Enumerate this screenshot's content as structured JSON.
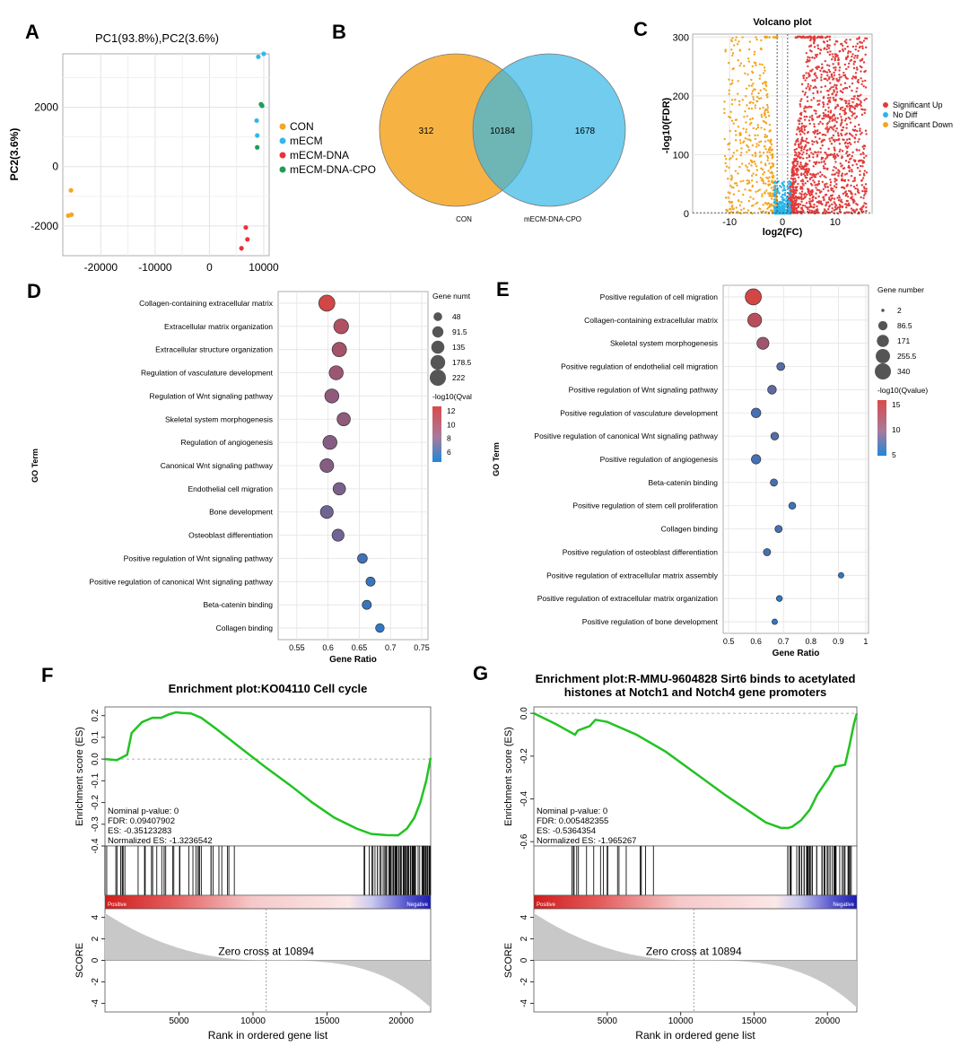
{
  "colors": {
    "orange": "#f5a623",
    "blue": "#35b7e6",
    "red": "#e8333a",
    "green": "#1e9c58",
    "grid": "#e3e3e3",
    "es_line": "#22c322",
    "gene_sig": "#e23b3b",
    "gene_nodiff": "#27b6ea",
    "gene_down": "#f3a51f"
  },
  "panels": {
    "A": "A",
    "B": "B",
    "C": "C",
    "D": "D",
    "E": "E",
    "F": "F",
    "G": "G"
  },
  "chart_data": [
    {
      "id": "A",
      "type": "scatter",
      "title": "PC1(93.8%),PC2(3.6%)",
      "xlabel": "",
      "ylabel": "PC2(3.6%)",
      "xlim": [
        -27000,
        11000
      ],
      "ylim": [
        -3000,
        3800
      ],
      "xticks": [
        {
          "v": -20000,
          "l": "-20000"
        },
        {
          "v": -10000,
          "l": "-10000"
        },
        {
          "v": 0,
          "l": "0"
        },
        {
          "v": 10000,
          "l": "10000"
        }
      ],
      "yticks": [
        {
          "v": 2000,
          "l": "2000"
        },
        {
          "v": 0,
          "l": "0"
        },
        {
          "v": -2000,
          "l": "-2000"
        }
      ],
      "legend": [
        "CON",
        "mECM",
        "mECM-DNA",
        "mECM-DNA-CPO"
      ],
      "series": [
        {
          "name": "CON",
          "color": "orange",
          "points": [
            [
              -25500,
              -800
            ],
            [
              -26000,
              -1650
            ],
            [
              -25400,
              -1620
            ]
          ]
        },
        {
          "name": "mECM",
          "color": "blue",
          "points": [
            [
              10000,
              3800
            ],
            [
              8700,
              1550
            ],
            [
              8800,
              1050
            ],
            [
              9000,
              3700
            ]
          ]
        },
        {
          "name": "mECM-DNA",
          "color": "red",
          "points": [
            [
              6700,
              -2050
            ],
            [
              7000,
              -2450
            ],
            [
              5900,
              -2750
            ]
          ]
        },
        {
          "name": "mECM-DNA-CPO",
          "color": "green",
          "points": [
            [
              9500,
              2100
            ],
            [
              9700,
              2050
            ],
            [
              8800,
              650
            ]
          ]
        }
      ]
    },
    {
      "id": "B",
      "type": "venn",
      "sets": [
        "CON",
        "mECM-DNA-CPO"
      ],
      "only_left": "312",
      "both": "10184",
      "only_right": "1678"
    },
    {
      "id": "C",
      "type": "scatter",
      "title": "Volcano plot",
      "xlabel": "log2(FC)",
      "ylabel": "-log10(FDR)",
      "xlim": [
        -17,
        17
      ],
      "ylim": [
        0,
        305
      ],
      "xticks": [
        {
          "v": -10,
          "l": "-10"
        },
        {
          "v": 0,
          "l": "0"
        },
        {
          "v": 10,
          "l": "10"
        }
      ],
      "yticks": [
        {
          "v": 0,
          "l": "0"
        },
        {
          "v": 100,
          "l": "100"
        },
        {
          "v": 200,
          "l": "200"
        },
        {
          "v": 300,
          "l": "300"
        }
      ],
      "legend": [
        "Significant Up",
        "No Diff",
        "Significant Down"
      ]
    },
    {
      "id": "D",
      "type": "scatter",
      "xlabel": "Gene Ratio",
      "ylabel": "GO Term",
      "xlim": [
        0.52,
        0.76
      ],
      "xticks": [
        "0.55",
        "0.6",
        "0.65",
        "0.7",
        "0.75"
      ],
      "size_title": "Gene numt",
      "size_legend": [
        "48",
        "91.5",
        "135",
        "178.5",
        "222"
      ],
      "color_title": "-log10(Qval",
      "color_legend": [
        "12",
        "10",
        "8",
        "6"
      ],
      "terms": [
        "Collagen-containing extracellular matrix",
        "Extracellular matrix organization",
        "Extracellular structure organization",
        "Regulation of vasculature development",
        "Regulation of Wnt signaling pathway",
        "Skeletal system morphogenesis",
        "Regulation of angiogenesis",
        "Canonical Wnt signaling pathway",
        "Endothelial cell migration",
        "Bone development",
        "Osteoblast differentiation",
        "Positive regulation of Wnt signaling pathway",
        "Positive regulation of canonical Wnt signaling pathway",
        "Beta-catenin binding",
        "Collagen binding"
      ],
      "ratio": [
        0.598,
        0.621,
        0.618,
        0.613,
        0.606,
        0.625,
        0.603,
        0.598,
        0.618,
        0.598,
        0.616,
        0.655,
        0.668,
        0.662,
        0.683
      ],
      "size": [
        222,
        180,
        170,
        160,
        160,
        140,
        160,
        150,
        120,
        130,
        110,
        65,
        55,
        55,
        48
      ],
      "q": [
        12.5,
        11,
        10.5,
        10,
        9.5,
        9.5,
        9,
        9,
        8.5,
        8,
        8,
        6,
        5.5,
        5.5,
        5
      ]
    },
    {
      "id": "E",
      "type": "scatter",
      "xlabel": "Gene Ratio",
      "ylabel": "GO Term",
      "xlim": [
        0.48,
        1.01
      ],
      "xticks": [
        "0.5",
        "0.6",
        "0.7",
        "0.8",
        "0.9",
        "1"
      ],
      "size_title": "Gene number",
      "size_legend": [
        "2",
        "86.5",
        "171",
        "255.5",
        "340"
      ],
      "color_title": "-log10(Qvalue)",
      "color_legend": [
        "15",
        "10",
        "5"
      ],
      "terms": [
        "Positive regulation of cell migration",
        "Collagen-containing extracellular matrix",
        "Skeletal system morphogenesis",
        "Positive regulation of endothelial cell migration",
        "Positive regulation of Wnt signaling pathway",
        "Positive regulation of vasculature development",
        "Positive regulation of canonical Wnt signaling pathway",
        "Positive regulation of angiogenesis",
        "Beta-catenin binding",
        "Positive regulation of stem cell proliferation",
        "Collagen binding",
        "Positive regulation of osteoblast differentiation",
        "Positive regulation of extracellular matrix assembly",
        "Positive regulation of extracellular matrix organization",
        "Positive regulation of bone development"
      ],
      "ratio": [
        0.59,
        0.595,
        0.625,
        0.69,
        0.658,
        0.6,
        0.668,
        0.6,
        0.665,
        0.732,
        0.682,
        0.64,
        0.91,
        0.685,
        0.668
      ],
      "size": [
        340,
        240,
        170,
        60,
        75,
        95,
        55,
        90,
        45,
        40,
        45,
        45,
        20,
        25,
        20
      ],
      "q": [
        16,
        14,
        12,
        6,
        7,
        5,
        6,
        5,
        5,
        4,
        5,
        5,
        3,
        3,
        3
      ]
    },
    {
      "id": "F",
      "type": "line",
      "title": "Enrichment plot:KO04110 Cell cycle",
      "xlabel": "Rank in ordered gene list",
      "ylabel": "Enrichment score (ES)",
      "ylabel2": "SCORE",
      "xlim": [
        0,
        22000
      ],
      "es_ticks": [
        "0.2",
        "0.1",
        "0.0",
        "-0.1",
        "-0.2",
        "-0.3",
        "-0.4"
      ],
      "score_ticks": [
        "4",
        "2",
        "0",
        "-2",
        "-4"
      ],
      "xticks": [
        "5000",
        "10000",
        "15000",
        "20000"
      ],
      "stats": [
        "Nominal p-value: 0",
        "FDR: 0.09407902",
        "ES: -0.35123283",
        "Normalized ES: -1.3236542"
      ],
      "zero_cross": "Zero cross at 10894",
      "pos_label": "Positive",
      "neg_label": "Negative",
      "x": [
        0,
        800,
        1500,
        1800,
        2500,
        3200,
        3800,
        4300,
        4800,
        5200,
        5800,
        6500,
        7500,
        9000,
        10894,
        12500,
        14000,
        15500,
        17000,
        18000,
        19000,
        19800,
        20400,
        20900,
        21300,
        21700,
        22000
      ],
      "es": [
        0,
        -0.005,
        0.02,
        0.12,
        0.17,
        0.19,
        0.19,
        0.205,
        0.215,
        0.212,
        0.21,
        0.19,
        0.14,
        0.06,
        -0.04,
        -0.12,
        -0.2,
        -0.27,
        -0.32,
        -0.345,
        -0.35,
        -0.351,
        -0.32,
        -0.27,
        -0.2,
        -0.1,
        0.005
      ]
    },
    {
      "id": "G",
      "type": "line",
      "title": "Enrichment plot:R-MMU-9604828 Sirt6 binds to acetylated histones at Notch1 and Notch4 gene promoters",
      "xlabel": "Rank in ordered gene list",
      "ylabel": "Enrichment score (ES)",
      "ylabel2": "SCORE",
      "xlim": [
        0,
        22000
      ],
      "es_ticks": [
        "0.0",
        "-0.2",
        "-0.4",
        "-0.6"
      ],
      "score_ticks": [
        "4",
        "2",
        "0",
        "-2",
        "-4"
      ],
      "xticks": [
        "5000",
        "10000",
        "15000",
        "20000"
      ],
      "stats": [
        "Nominal p-value: 0",
        "FDR: 0.005482355",
        "ES: -0.5364354",
        "Normalized ES: -1.965267"
      ],
      "zero_cross": "Zero cross at 10894",
      "pos_label": "Positive",
      "neg_label": "Negative",
      "x": [
        0,
        1500,
        2800,
        3000,
        3800,
        4200,
        5000,
        7000,
        9000,
        11000,
        13000,
        14500,
        15800,
        16800,
        17300,
        17600,
        18200,
        18800,
        19300,
        20100,
        20500,
        21200,
        21500,
        21800,
        22000
      ],
      "es": [
        0,
        -0.05,
        -0.1,
        -0.08,
        -0.06,
        -0.03,
        -0.04,
        -0.1,
        -0.18,
        -0.28,
        -0.38,
        -0.45,
        -0.51,
        -0.535,
        -0.536,
        -0.53,
        -0.5,
        -0.45,
        -0.38,
        -0.3,
        -0.25,
        -0.24,
        -0.15,
        -0.05,
        0
      ]
    }
  ]
}
